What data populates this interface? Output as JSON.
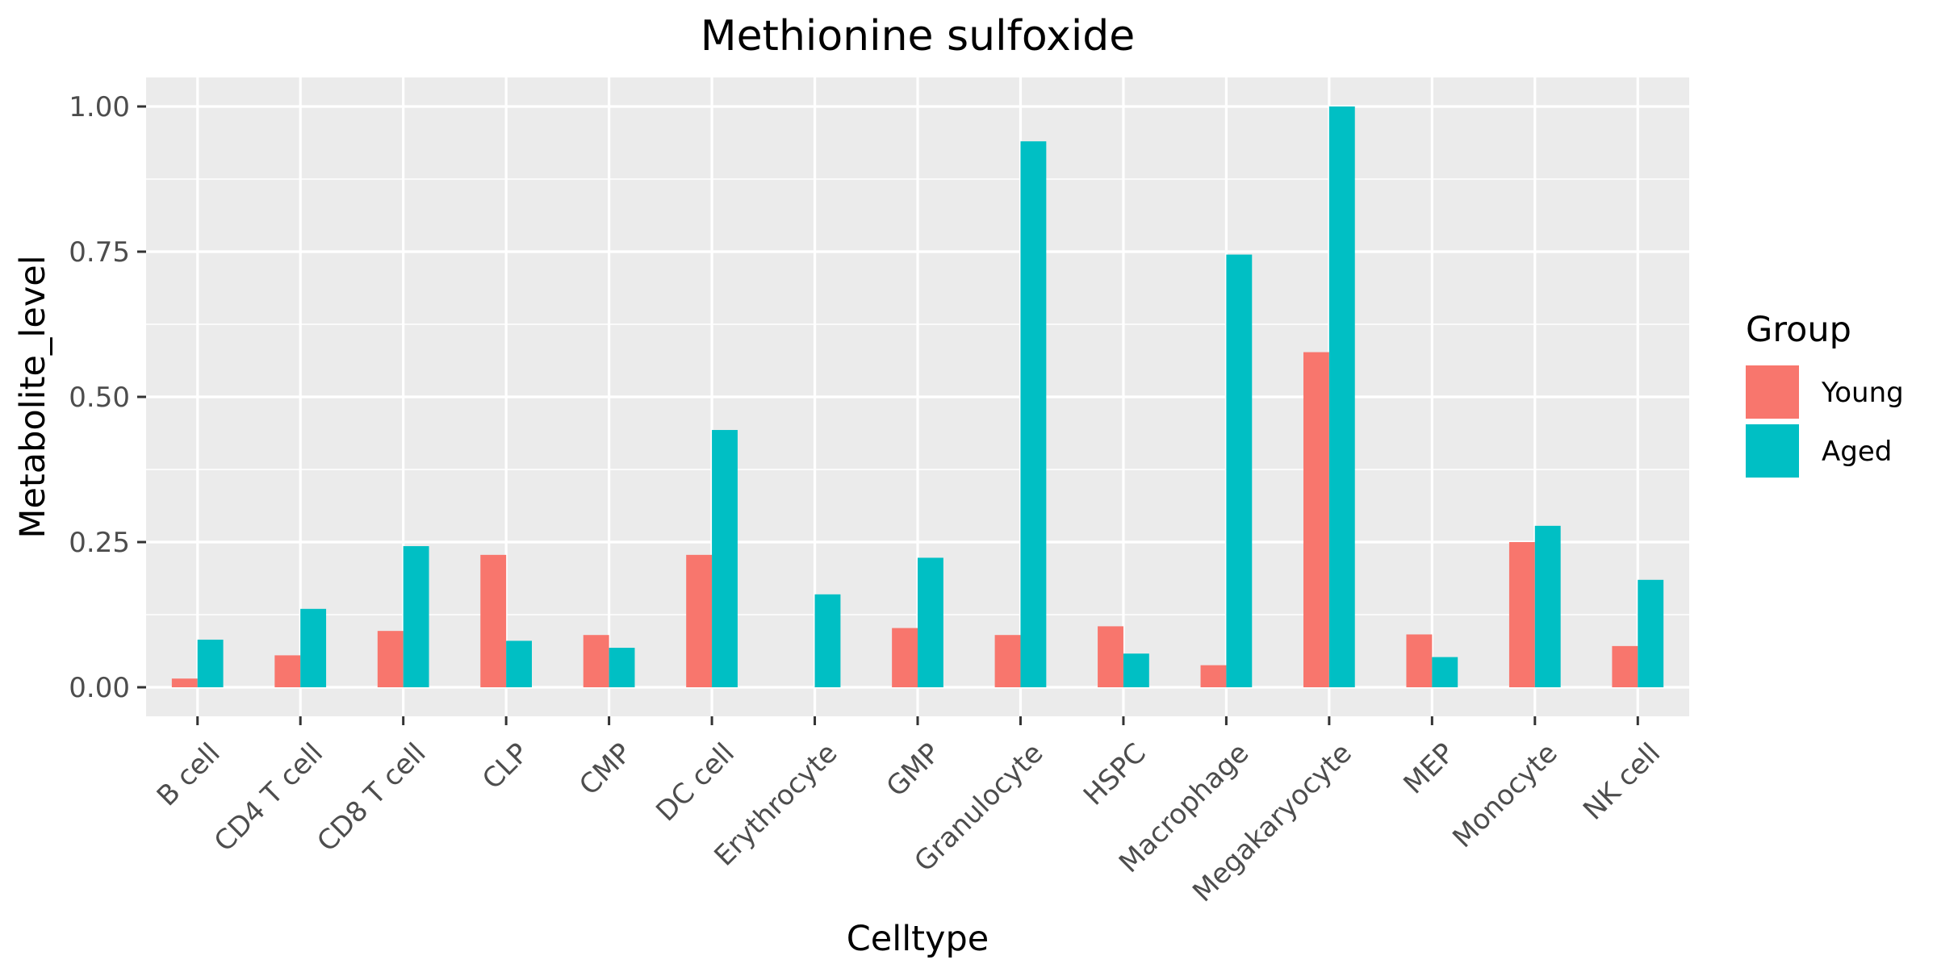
{
  "chart_data": {
    "type": "bar",
    "title": "Methionine sulfoxide",
    "xlabel": "Celltype",
    "ylabel": "Metabolite_level",
    "ylim": [
      -0.05,
      1.05
    ],
    "yticks": [
      0.0,
      0.25,
      0.5,
      0.75,
      1.0
    ],
    "ytick_labels": [
      "0.00",
      "0.25",
      "0.50",
      "0.75",
      "1.00"
    ],
    "grid": true,
    "legend": {
      "title": "Group",
      "position": "right"
    },
    "categories": [
      "B cell",
      "CD4 T cell",
      "CD8 T cell",
      "CLP",
      "CMP",
      "DC cell",
      "Erythrocyte",
      "GMP",
      "Granulocyte",
      "HSPC",
      "Macrophage",
      "Megakaryocyte",
      "MEP",
      "Monocyte",
      "NK cell"
    ],
    "series": [
      {
        "name": "Young",
        "color": "#F8766D",
        "values": [
          0.015,
          0.055,
          0.097,
          0.228,
          0.09,
          0.228,
          null,
          0.102,
          0.09,
          0.105,
          0.038,
          0.577,
          0.091,
          0.25,
          0.071
        ]
      },
      {
        "name": "Aged",
        "color": "#00BFC4",
        "values": [
          0.082,
          0.135,
          0.243,
          0.08,
          0.068,
          0.443,
          0.16,
          0.223,
          0.94,
          0.058,
          0.745,
          1.0,
          0.052,
          0.278,
          0.185
        ]
      }
    ]
  },
  "style": {
    "panel_bg": "#EBEBEB",
    "grid_color": "#FFFFFF",
    "tick_color": "#333333"
  }
}
